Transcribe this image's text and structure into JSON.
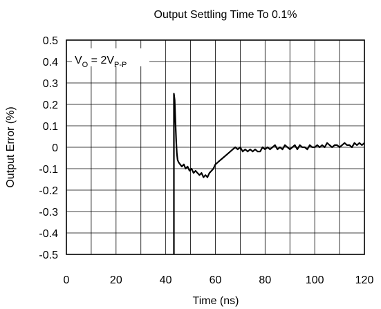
{
  "chart_data": {
    "type": "line",
    "title": "Output Settling Time To 0.1%",
    "xlabel": "Time (ns)",
    "ylabel": "Output Error (%)",
    "xlim": [
      0,
      120
    ],
    "ylim": [
      -0.5,
      0.5
    ],
    "grid": true,
    "x_ticks": [
      "0",
      "20",
      "40",
      "60",
      "80",
      "100",
      "120"
    ],
    "y_ticks": [
      "0.5",
      "0.4",
      "0.3",
      "0.2",
      "0.1",
      "0",
      "-0.1",
      "-0.2",
      "-0.3",
      "-0.4",
      "-0.5"
    ],
    "annotation": {
      "base": "V",
      "sub1": "O",
      "middle": " = 2V",
      "sub2": "P-P"
    },
    "line_color": "#000000",
    "series": [
      {
        "x": [
          43.3,
          43.3,
          43.6,
          43.9,
          44.2,
          44.5,
          44.8,
          45.2,
          45.8,
          46.5,
          47.3,
          48.0,
          48.8,
          49.6,
          50.4,
          51.2,
          52.0,
          52.8,
          53.6,
          54.4,
          55.2,
          56.0,
          56.8,
          57.6,
          58.4,
          59.2,
          60.0,
          61.0,
          62.0,
          63.0,
          64.0,
          65.0,
          66.0,
          67.0,
          68.0,
          69.0,
          70.0,
          71.0,
          72.0,
          73.0,
          74.0,
          75.0,
          76.0,
          77.0,
          78.0,
          79.0,
          80.0,
          81.0,
          82.0,
          83.0,
          84.0,
          85.0,
          86.0,
          87.0,
          88.0,
          89.0,
          90.0,
          91.0,
          92.0,
          93.0,
          94.0,
          95.0,
          96.0,
          97.0,
          98.0,
          99.0,
          100.0,
          101.0,
          102.0,
          103.0,
          104.0,
          105.0,
          106.0,
          107.0,
          108.0,
          109.0,
          110.0,
          111.0,
          112.0,
          113.0,
          114.0,
          115.0,
          116.0,
          117.0,
          118.0,
          119.0,
          120.0
        ],
        "y": [
          -0.5,
          0.25,
          0.22,
          0.12,
          0.03,
          -0.03,
          -0.06,
          -0.07,
          -0.08,
          -0.09,
          -0.08,
          -0.1,
          -0.09,
          -0.11,
          -0.1,
          -0.12,
          -0.11,
          -0.12,
          -0.13,
          -0.12,
          -0.14,
          -0.13,
          -0.14,
          -0.12,
          -0.11,
          -0.1,
          -0.08,
          -0.07,
          -0.06,
          -0.05,
          -0.04,
          -0.03,
          -0.02,
          -0.01,
          0.0,
          -0.01,
          0.0,
          -0.02,
          -0.01,
          -0.02,
          -0.01,
          -0.02,
          -0.01,
          -0.02,
          -0.02,
          0.0,
          -0.01,
          0.0,
          -0.01,
          0.0,
          0.01,
          -0.01,
          0.0,
          -0.01,
          0.01,
          0.0,
          -0.01,
          0.0,
          0.01,
          -0.01,
          0.01,
          0.0,
          0.0,
          -0.01,
          0.01,
          0.0,
          0.0,
          0.01,
          0.0,
          0.01,
          0.0,
          0.02,
          0.01,
          0.0,
          0.01,
          0.01,
          0.0,
          0.01,
          0.02,
          0.01,
          0.01,
          0.0,
          0.02,
          0.01,
          0.02,
          0.01,
          0.02
        ]
      }
    ]
  }
}
